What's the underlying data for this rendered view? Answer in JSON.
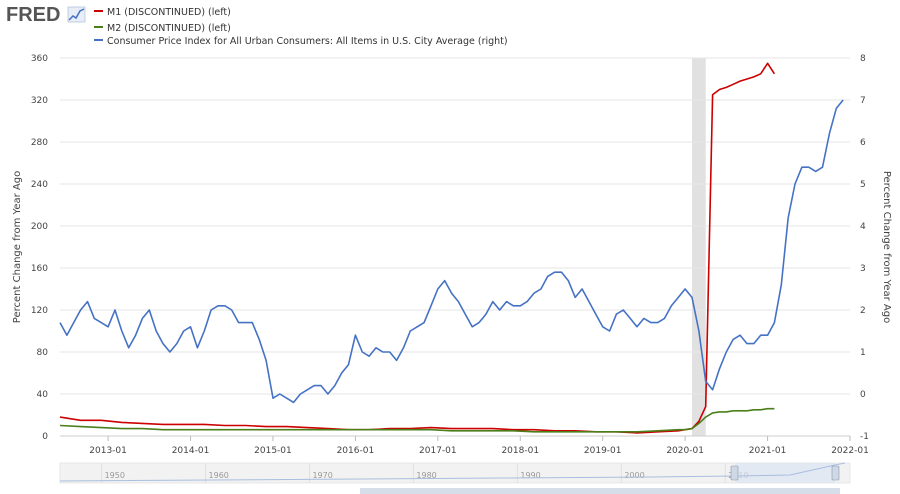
{
  "header": {
    "logo_text": "FRED",
    "logo_icon": "trend-line-icon"
  },
  "legend": [
    {
      "label": "M1 (DISCONTINUED) (left)",
      "color": "#cc0000"
    },
    {
      "label": "M2 (DISCONTINUED) (left)",
      "color": "#4a7f19"
    },
    {
      "label": "Consumer Price Index for All Urban Consumers: All Items in U.S. City Average (right)",
      "color": "#4572c4"
    }
  ],
  "navigator": {
    "ticks": [
      "1950",
      "1960",
      "1970",
      "1980",
      "1990",
      "2000",
      "2010"
    ]
  },
  "chart_data": {
    "type": "line",
    "ylabel_left": "Percent Change from Year Ago",
    "ylabel_right": "Percent Change from Year Ago",
    "ylim_left": [
      0,
      360
    ],
    "ylim_right": [
      -1,
      8
    ],
    "yticks_left": [
      "0",
      "40",
      "80",
      "120",
      "160",
      "200",
      "240",
      "280",
      "320",
      "360"
    ],
    "yticks_right": [
      "-1",
      "0",
      "1",
      "2",
      "3",
      "4",
      "5",
      "6",
      "7",
      "8"
    ],
    "xlim": [
      "2012-06",
      "2022-01"
    ],
    "xticks": [
      "2013-01",
      "2014-01",
      "2015-01",
      "2016-01",
      "2017-01",
      "2018-01",
      "2019-01",
      "2020-01",
      "2021-01",
      "2022-01"
    ],
    "recession": [
      "2020-02",
      "2020-04"
    ],
    "grid": true,
    "series": [
      {
        "name": "M1 (DISCONTINUED) (left)",
        "axis": "left",
        "color": "#cc0000",
        "x": [
          "2012-06",
          "2012-09",
          "2012-12",
          "2013-03",
          "2013-06",
          "2013-09",
          "2013-12",
          "2014-03",
          "2014-06",
          "2014-09",
          "2014-12",
          "2015-03",
          "2015-06",
          "2015-09",
          "2015-12",
          "2016-03",
          "2016-06",
          "2016-09",
          "2016-12",
          "2017-03",
          "2017-06",
          "2017-09",
          "2017-12",
          "2018-03",
          "2018-06",
          "2018-09",
          "2018-12",
          "2019-03",
          "2019-06",
          "2019-09",
          "2019-12",
          "2020-01",
          "2020-02",
          "2020-03",
          "2020-04",
          "2020-05",
          "2020-06",
          "2020-07",
          "2020-08",
          "2020-09",
          "2020-10",
          "2020-11",
          "2020-12",
          "2021-01",
          "2021-02"
        ],
        "y": [
          18,
          15,
          15,
          13,
          12,
          11,
          11,
          11,
          10,
          10,
          9,
          9,
          8,
          7,
          6,
          6,
          7,
          7,
          8,
          7,
          7,
          7,
          6,
          6,
          5,
          5,
          4,
          4,
          3,
          4,
          5,
          6,
          7,
          14,
          28,
          325,
          330,
          332,
          335,
          338,
          340,
          342,
          345,
          355,
          345
        ]
      },
      {
        "name": "M2 (DISCONTINUED) (left)",
        "axis": "left",
        "color": "#4a7f19",
        "x": [
          "2012-06",
          "2012-09",
          "2012-12",
          "2013-03",
          "2013-06",
          "2013-09",
          "2013-12",
          "2014-03",
          "2014-06",
          "2014-09",
          "2014-12",
          "2015-03",
          "2015-06",
          "2015-09",
          "2015-12",
          "2016-03",
          "2016-06",
          "2016-09",
          "2016-12",
          "2017-03",
          "2017-06",
          "2017-09",
          "2017-12",
          "2018-03",
          "2018-06",
          "2018-09",
          "2018-12",
          "2019-03",
          "2019-06",
          "2019-09",
          "2019-12",
          "2020-01",
          "2020-02",
          "2020-03",
          "2020-04",
          "2020-05",
          "2020-06",
          "2020-07",
          "2020-08",
          "2020-09",
          "2020-10",
          "2020-11",
          "2020-12",
          "2021-01",
          "2021-02"
        ],
        "y": [
          10,
          9,
          8,
          7,
          7,
          6,
          6,
          6,
          6,
          6,
          6,
          6,
          6,
          6,
          6,
          6,
          6,
          6,
          6,
          5,
          5,
          5,
          5,
          4,
          4,
          4,
          4,
          4,
          4,
          5,
          6,
          6,
          7,
          12,
          18,
          22,
          23,
          23,
          24,
          24,
          24,
          25,
          25,
          26,
          26
        ]
      },
      {
        "name": "Consumer Price Index for All Urban Consumers: All Items in U.S. City Average (right)",
        "axis": "right",
        "color": "#4572c4",
        "x": [
          "2012-06",
          "2012-07",
          "2012-08",
          "2012-09",
          "2012-10",
          "2012-11",
          "2012-12",
          "2013-01",
          "2013-02",
          "2013-03",
          "2013-04",
          "2013-05",
          "2013-06",
          "2013-07",
          "2013-08",
          "2013-09",
          "2013-10",
          "2013-11",
          "2013-12",
          "2014-01",
          "2014-02",
          "2014-03",
          "2014-04",
          "2014-05",
          "2014-06",
          "2014-07",
          "2014-08",
          "2014-09",
          "2014-10",
          "2014-11",
          "2014-12",
          "2015-01",
          "2015-02",
          "2015-03",
          "2015-04",
          "2015-05",
          "2015-06",
          "2015-07",
          "2015-08",
          "2015-09",
          "2015-10",
          "2015-11",
          "2015-12",
          "2016-01",
          "2016-02",
          "2016-03",
          "2016-04",
          "2016-05",
          "2016-06",
          "2016-07",
          "2016-08",
          "2016-09",
          "2016-10",
          "2016-11",
          "2016-12",
          "2017-01",
          "2017-02",
          "2017-03",
          "2017-04",
          "2017-05",
          "2017-06",
          "2017-07",
          "2017-08",
          "2017-09",
          "2017-10",
          "2017-11",
          "2017-12",
          "2018-01",
          "2018-02",
          "2018-03",
          "2018-04",
          "2018-05",
          "2018-06",
          "2018-07",
          "2018-08",
          "2018-09",
          "2018-10",
          "2018-11",
          "2018-12",
          "2019-01",
          "2019-02",
          "2019-03",
          "2019-04",
          "2019-05",
          "2019-06",
          "2019-07",
          "2019-08",
          "2019-09",
          "2019-10",
          "2019-11",
          "2019-12",
          "2020-01",
          "2020-02",
          "2020-03",
          "2020-04",
          "2020-05",
          "2020-06",
          "2020-07",
          "2020-08",
          "2020-09",
          "2020-10",
          "2020-11",
          "2020-12",
          "2021-01",
          "2021-02",
          "2021-03",
          "2021-04",
          "2021-05",
          "2021-06",
          "2021-07",
          "2021-08",
          "2021-09",
          "2021-10",
          "2021-11",
          "2021-12"
        ],
        "y": [
          1.7,
          1.4,
          1.7,
          2.0,
          2.2,
          1.8,
          1.7,
          1.6,
          2.0,
          1.5,
          1.1,
          1.4,
          1.8,
          2.0,
          1.5,
          1.2,
          1.0,
          1.2,
          1.5,
          1.6,
          1.1,
          1.5,
          2.0,
          2.1,
          2.1,
          2.0,
          1.7,
          1.7,
          1.7,
          1.3,
          0.8,
          -0.1,
          0.0,
          -0.1,
          -0.2,
          0.0,
          0.1,
          0.2,
          0.2,
          0.0,
          0.2,
          0.5,
          0.7,
          1.4,
          1.0,
          0.9,
          1.1,
          1.0,
          1.0,
          0.8,
          1.1,
          1.5,
          1.6,
          1.7,
          2.1,
          2.5,
          2.7,
          2.4,
          2.2,
          1.9,
          1.6,
          1.7,
          1.9,
          2.2,
          2.0,
          2.2,
          2.1,
          2.1,
          2.2,
          2.4,
          2.5,
          2.8,
          2.9,
          2.9,
          2.7,
          2.3,
          2.5,
          2.2,
          1.9,
          1.6,
          1.5,
          1.9,
          2.0,
          1.8,
          1.6,
          1.8,
          1.7,
          1.7,
          1.8,
          2.1,
          2.3,
          2.5,
          2.3,
          1.5,
          0.3,
          0.1,
          0.6,
          1.0,
          1.3,
          1.4,
          1.2,
          1.2,
          1.4,
          1.4,
          1.7,
          2.6,
          4.2,
          5.0,
          5.4,
          5.4,
          5.3,
          5.4,
          6.2,
          6.8,
          7.0
        ],
        "line_width": 1.6
      }
    ]
  }
}
